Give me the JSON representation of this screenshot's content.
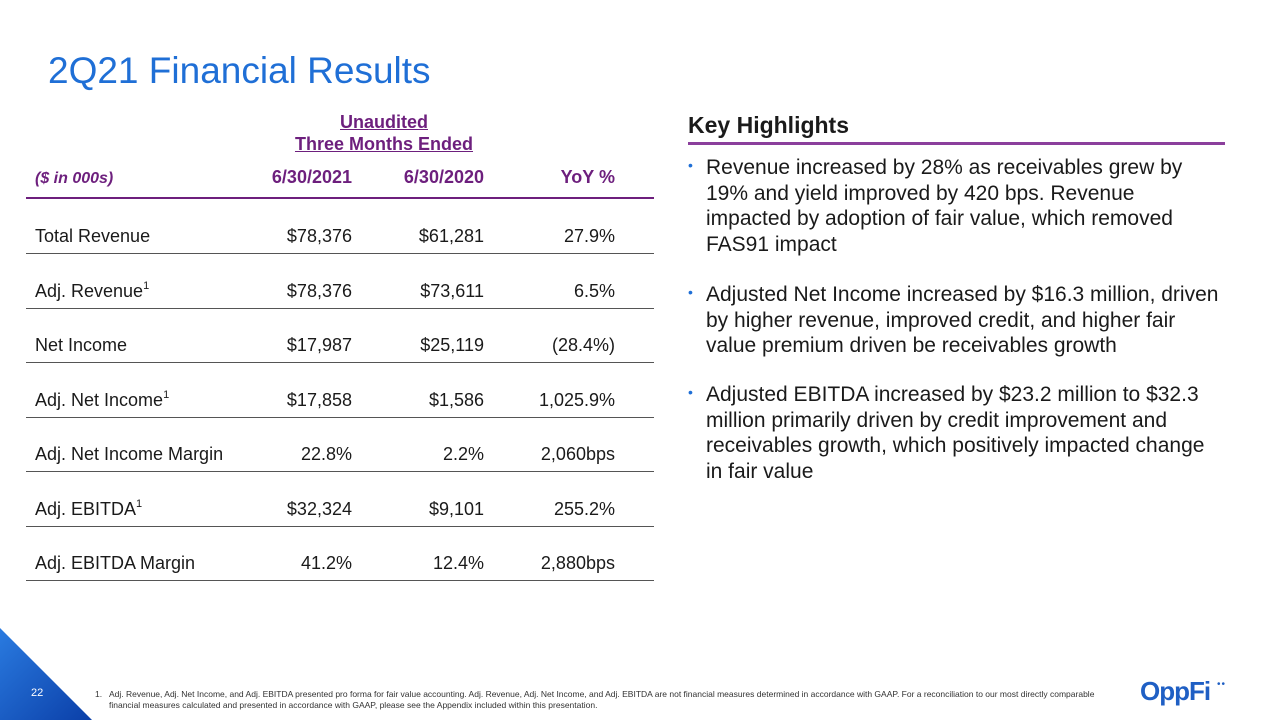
{
  "title": "2Q21 Financial Results",
  "table": {
    "group_header_1": "Unaudited",
    "group_header_2": "Three Months Ended",
    "units_label": "($ in 000s)",
    "columns": [
      "6/30/2021",
      "6/30/2020",
      "YoY %"
    ],
    "rows": [
      {
        "label": "Total Revenue",
        "sup": "",
        "values": [
          "$78,376",
          "$61,281",
          "27.9%"
        ]
      },
      {
        "label": "Adj. Revenue",
        "sup": "1",
        "values": [
          "$78,376",
          "$73,611",
          "6.5%"
        ]
      },
      {
        "label": "Net Income",
        "sup": "",
        "values": [
          "$17,987",
          "$25,119",
          "(28.4%)"
        ]
      },
      {
        "label": "Adj. Net Income",
        "sup": "1",
        "values": [
          "$17,858",
          "$1,586",
          "1,025.9%"
        ]
      },
      {
        "label": "Adj. Net Income Margin",
        "sup": "",
        "values": [
          "22.8%",
          "2.2%",
          "2,060bps"
        ]
      },
      {
        "label": "Adj. EBITDA",
        "sup": "1",
        "values": [
          "$32,324",
          "$9,101",
          "255.2%"
        ]
      },
      {
        "label": "Adj. EBITDA Margin",
        "sup": "",
        "values": [
          "41.2%",
          "12.4%",
          "2,880bps"
        ]
      }
    ]
  },
  "highlights": {
    "title": "Key Highlights",
    "bullets": [
      "Revenue increased by 28% as receivables grew by 19% and yield improved by 420 bps. Revenue impacted by adoption of fair value, which removed FAS91 impact",
      "Adjusted Net Income increased by $16.3 million, driven by higher revenue, improved credit, and higher fair value premium driven be receivables growth",
      "Adjusted EBITDA increased by $23.2 million to $32.3 million primarily driven by credit improvement and receivables growth, which positively impacted change in fair value"
    ]
  },
  "footnote": {
    "number": "1.",
    "text": "Adj. Revenue, Adj. Net Income, and Adj. EBITDA presented pro forma for fair value accounting. Adj. Revenue, Adj. Net Income, and Adj. EBITDA are not financial measures determined in accordance with GAAP. For a reconciliation to our most directly comparable financial measures calculated and presented in accordance with GAAP, please see the Appendix included within this presentation."
  },
  "page_number": "22",
  "logo": {
    "text": "OppFi",
    "dots": "••"
  },
  "colors": {
    "title_blue": "#1f6fd6",
    "header_purple": "#6d1f7d",
    "accent_purple": "#8b3f9c",
    "logo_blue": "#1f5fc4"
  }
}
